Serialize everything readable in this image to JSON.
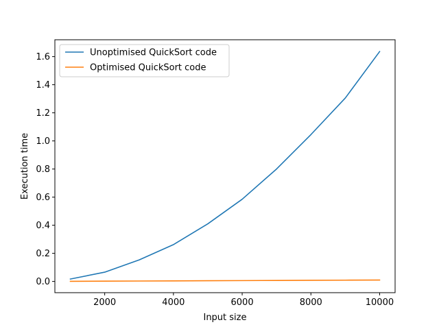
{
  "chart_data": {
    "type": "line",
    "xlabel": "Input size",
    "ylabel": "Execution time",
    "xlim": [
      550,
      10450
    ],
    "ylim": [
      -0.08,
      1.72
    ],
    "x": [
      1000,
      2000,
      3000,
      4000,
      5000,
      6000,
      7000,
      8000,
      9000,
      10000
    ],
    "xticks": [
      2000,
      4000,
      6000,
      8000,
      10000
    ],
    "xtick_labels": [
      "2000",
      "4000",
      "6000",
      "8000",
      "10000"
    ],
    "yticks": [
      0.0,
      0.2,
      0.4,
      0.6,
      0.8,
      1.0,
      1.2,
      1.4,
      1.6
    ],
    "ytick_labels": [
      "0.0",
      "0.2",
      "0.4",
      "0.6",
      "0.8",
      "1.0",
      "1.2",
      "1.4",
      "1.6"
    ],
    "grid": false,
    "legend_position": "top-left",
    "series": [
      {
        "name": "Unoptimised QuickSort code",
        "color": "#1f77b4",
        "values": [
          0.017,
          0.066,
          0.153,
          0.262,
          0.41,
          0.585,
          0.8,
          1.045,
          1.305,
          1.636
        ]
      },
      {
        "name": "Optimised QuickSort code",
        "color": "#ff7f0e",
        "values": [
          0.001,
          0.002,
          0.003,
          0.004,
          0.005,
          0.006,
          0.007,
          0.008,
          0.009,
          0.01
        ]
      }
    ]
  }
}
